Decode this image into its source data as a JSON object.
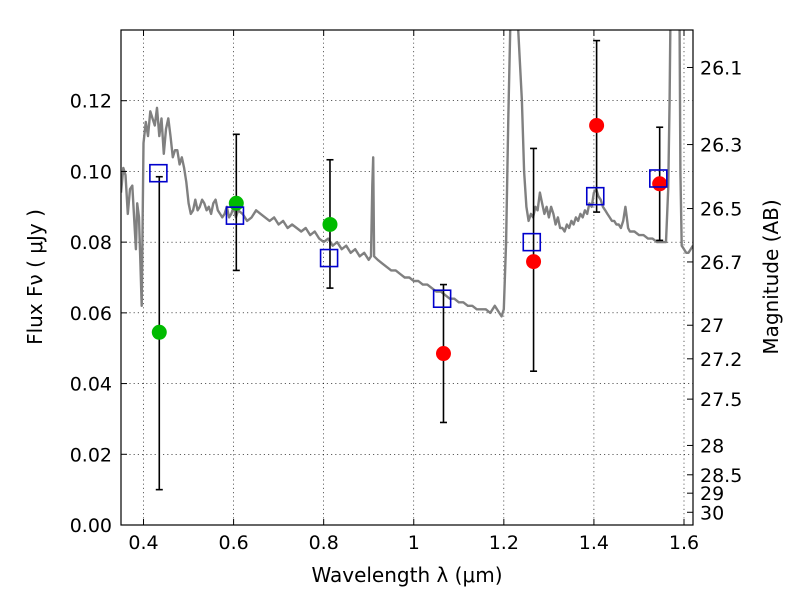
{
  "chart_data": {
    "type": "scatter",
    "xlabel": "Wavelength  λ (μm)",
    "ylabel": "Flux  Fν  ( μJy )",
    "y2label": "Magnitude (AB)",
    "xlim": [
      0.35,
      1.62
    ],
    "ylim": [
      0.0,
      0.14
    ],
    "grid": true,
    "x_ticks": [
      0.4,
      0.6,
      0.8,
      1.0,
      1.2,
      1.4,
      1.6
    ],
    "x_tick_labels": [
      "0.4",
      "0.6",
      "0.8",
      "1",
      "1.2",
      "1.4",
      "1.6"
    ],
    "y_ticks": [
      0.0,
      0.02,
      0.04,
      0.06,
      0.08,
      0.1,
      0.12
    ],
    "y_tick_labels": [
      "0.00",
      "0.02",
      "0.04",
      "0.06",
      "0.08",
      "0.10",
      "0.12"
    ],
    "y2_ticks": [
      {
        "label": "26.1",
        "flux": 0.1294
      },
      {
        "label": "26.3",
        "flux": 0.1076
      },
      {
        "label": "26.5",
        "flux": 0.0895
      },
      {
        "label": "26.7",
        "flux": 0.0744
      },
      {
        "label": "27",
        "flux": 0.0565
      },
      {
        "label": "27.2",
        "flux": 0.047
      },
      {
        "label": "27.5",
        "flux": 0.0356
      },
      {
        "label": "28",
        "flux": 0.0225
      },
      {
        "label": "28.5",
        "flux": 0.0142
      },
      {
        "label": "29",
        "flux": 0.009
      },
      {
        "label": "30",
        "flux": 0.0036
      }
    ],
    "series": [
      {
        "marker": "circle",
        "color": "#00bb00",
        "points": [
          {
            "x": 0.435,
            "y": 0.0545,
            "err": [
              0.01,
              0.0985
            ]
          },
          {
            "x": 0.606,
            "y": 0.091,
            "err": [
              0.072,
              0.1105
            ]
          },
          {
            "x": 0.814,
            "y": 0.085,
            "err": [
              0.067,
              0.1033
            ]
          }
        ]
      },
      {
        "marker": "circle",
        "color": "#ff0000",
        "points": [
          {
            "x": 1.066,
            "y": 0.0485,
            "err": [
              0.029,
              0.068
            ]
          },
          {
            "x": 1.266,
            "y": 0.0745,
            "err": [
              0.0435,
              0.1065
            ]
          },
          {
            "x": 1.406,
            "y": 0.113,
            "err": [
              0.0885,
              0.137
            ]
          },
          {
            "x": 1.546,
            "y": 0.0965,
            "err": [
              0.0805,
              0.1125
            ]
          }
        ]
      },
      {
        "marker": "square",
        "color": "#0000cc",
        "points": [
          {
            "x": 0.433,
            "y": 0.0995
          },
          {
            "x": 0.603,
            "y": 0.0875
          },
          {
            "x": 0.812,
            "y": 0.0755
          },
          {
            "x": 1.063,
            "y": 0.064
          },
          {
            "x": 1.262,
            "y": 0.08
          },
          {
            "x": 1.403,
            "y": 0.093
          },
          {
            "x": 1.543,
            "y": 0.098
          }
        ]
      },
      {
        "type": "line",
        "color": "#808080",
        "points": [
          [
            0.35,
            0.094
          ],
          [
            0.355,
            0.101
          ],
          [
            0.36,
            0.099
          ],
          [
            0.365,
            0.088
          ],
          [
            0.37,
            0.095
          ],
          [
            0.375,
            0.096
          ],
          [
            0.38,
            0.085
          ],
          [
            0.383,
            0.078
          ],
          [
            0.386,
            0.091
          ],
          [
            0.39,
            0.087
          ],
          [
            0.393,
            0.074
          ],
          [
            0.396,
            0.062
          ],
          [
            0.4,
            0.108
          ],
          [
            0.405,
            0.114
          ],
          [
            0.41,
            0.11
          ],
          [
            0.415,
            0.117
          ],
          [
            0.42,
            0.115
          ],
          [
            0.425,
            0.113
          ],
          [
            0.43,
            0.118
          ],
          [
            0.435,
            0.11
          ],
          [
            0.44,
            0.115
          ],
          [
            0.445,
            0.105
          ],
          [
            0.45,
            0.112
          ],
          [
            0.455,
            0.115
          ],
          [
            0.46,
            0.11
          ],
          [
            0.465,
            0.104
          ],
          [
            0.47,
            0.106
          ],
          [
            0.475,
            0.106
          ],
          [
            0.48,
            0.102
          ],
          [
            0.485,
            0.104
          ],
          [
            0.49,
            0.101
          ],
          [
            0.495,
            0.097
          ],
          [
            0.5,
            0.091
          ],
          [
            0.505,
            0.088
          ],
          [
            0.51,
            0.089
          ],
          [
            0.515,
            0.092
          ],
          [
            0.52,
            0.089
          ],
          [
            0.525,
            0.09
          ],
          [
            0.53,
            0.092
          ],
          [
            0.535,
            0.091
          ],
          [
            0.54,
            0.089
          ],
          [
            0.545,
            0.09
          ],
          [
            0.55,
            0.088
          ],
          [
            0.555,
            0.091
          ],
          [
            0.56,
            0.092
          ],
          [
            0.565,
            0.089
          ],
          [
            0.57,
            0.088
          ],
          [
            0.575,
            0.087
          ],
          [
            0.58,
            0.088
          ],
          [
            0.585,
            0.09
          ],
          [
            0.59,
            0.087
          ],
          [
            0.595,
            0.088
          ],
          [
            0.6,
            0.09
          ],
          [
            0.605,
            0.087
          ],
          [
            0.61,
            0.089
          ],
          [
            0.62,
            0.088
          ],
          [
            0.63,
            0.086
          ],
          [
            0.64,
            0.087
          ],
          [
            0.65,
            0.089
          ],
          [
            0.66,
            0.088
          ],
          [
            0.67,
            0.087
          ],
          [
            0.68,
            0.086
          ],
          [
            0.69,
            0.087
          ],
          [
            0.7,
            0.085
          ],
          [
            0.71,
            0.086
          ],
          [
            0.72,
            0.084
          ],
          [
            0.73,
            0.085
          ],
          [
            0.74,
            0.084
          ],
          [
            0.75,
            0.083
          ],
          [
            0.76,
            0.084
          ],
          [
            0.77,
            0.082
          ],
          [
            0.78,
            0.083
          ],
          [
            0.79,
            0.081
          ],
          [
            0.8,
            0.08
          ],
          [
            0.81,
            0.081
          ],
          [
            0.82,
            0.079
          ],
          [
            0.83,
            0.08
          ],
          [
            0.84,
            0.078
          ],
          [
            0.85,
            0.079
          ],
          [
            0.86,
            0.077
          ],
          [
            0.87,
            0.078
          ],
          [
            0.88,
            0.076
          ],
          [
            0.89,
            0.077
          ],
          [
            0.9,
            0.075
          ],
          [
            0.905,
            0.076
          ],
          [
            0.908,
            0.096
          ],
          [
            0.91,
            0.104
          ],
          [
            0.912,
            0.076
          ],
          [
            0.92,
            0.075
          ],
          [
            0.93,
            0.074
          ],
          [
            0.94,
            0.073
          ],
          [
            0.95,
            0.072
          ],
          [
            0.96,
            0.072
          ],
          [
            0.97,
            0.071
          ],
          [
            0.98,
            0.07
          ],
          [
            0.99,
            0.07
          ],
          [
            1.0,
            0.069
          ],
          [
            1.01,
            0.069
          ],
          [
            1.02,
            0.068
          ],
          [
            1.03,
            0.068
          ],
          [
            1.04,
            0.067
          ],
          [
            1.05,
            0.066
          ],
          [
            1.06,
            0.066
          ],
          [
            1.07,
            0.065
          ],
          [
            1.08,
            0.064
          ],
          [
            1.09,
            0.064
          ],
          [
            1.1,
            0.063
          ],
          [
            1.11,
            0.063
          ],
          [
            1.12,
            0.062
          ],
          [
            1.13,
            0.062
          ],
          [
            1.14,
            0.061
          ],
          [
            1.15,
            0.061
          ],
          [
            1.16,
            0.061
          ],
          [
            1.17,
            0.06
          ],
          [
            1.18,
            0.062
          ],
          [
            1.19,
            0.06
          ],
          [
            1.195,
            0.059
          ],
          [
            1.2,
            0.061
          ],
          [
            1.205,
            0.08
          ],
          [
            1.21,
            0.115
          ],
          [
            1.215,
            0.145
          ],
          [
            1.23,
            0.145
          ],
          [
            1.24,
            0.12
          ],
          [
            1.245,
            0.1
          ],
          [
            1.25,
            0.09
          ],
          [
            1.255,
            0.086
          ],
          [
            1.26,
            0.088
          ],
          [
            1.265,
            0.087
          ],
          [
            1.27,
            0.09
          ],
          [
            1.275,
            0.089
          ],
          [
            1.28,
            0.094
          ],
          [
            1.285,
            0.091
          ],
          [
            1.29,
            0.088
          ],
          [
            1.295,
            0.09
          ],
          [
            1.3,
            0.087
          ],
          [
            1.305,
            0.09
          ],
          [
            1.31,
            0.088
          ],
          [
            1.315,
            0.085
          ],
          [
            1.32,
            0.087
          ],
          [
            1.325,
            0.084
          ],
          [
            1.33,
            0.084
          ],
          [
            1.335,
            0.083
          ],
          [
            1.34,
            0.085
          ],
          [
            1.345,
            0.084
          ],
          [
            1.35,
            0.086
          ],
          [
            1.355,
            0.085
          ],
          [
            1.36,
            0.087
          ],
          [
            1.365,
            0.086
          ],
          [
            1.37,
            0.088
          ],
          [
            1.375,
            0.087
          ],
          [
            1.38,
            0.089
          ],
          [
            1.385,
            0.088
          ],
          [
            1.39,
            0.091
          ],
          [
            1.395,
            0.09
          ],
          [
            1.4,
            0.094
          ],
          [
            1.405,
            0.095
          ],
          [
            1.41,
            0.093
          ],
          [
            1.415,
            0.092
          ],
          [
            1.42,
            0.09
          ],
          [
            1.425,
            0.089
          ],
          [
            1.43,
            0.088
          ],
          [
            1.435,
            0.087
          ],
          [
            1.44,
            0.086
          ],
          [
            1.445,
            0.086
          ],
          [
            1.45,
            0.085
          ],
          [
            1.455,
            0.085
          ],
          [
            1.46,
            0.084
          ],
          [
            1.465,
            0.086
          ],
          [
            1.47,
            0.09
          ],
          [
            1.473,
            0.087
          ],
          [
            1.476,
            0.084
          ],
          [
            1.48,
            0.083
          ],
          [
            1.49,
            0.083
          ],
          [
            1.5,
            0.082
          ],
          [
            1.51,
            0.082
          ],
          [
            1.52,
            0.081
          ],
          [
            1.53,
            0.081
          ],
          [
            1.54,
            0.08
          ],
          [
            1.55,
            0.08
          ],
          [
            1.56,
            0.08
          ],
          [
            1.565,
            0.095
          ],
          [
            1.568,
            0.12
          ],
          [
            1.57,
            0.145
          ],
          [
            1.59,
            0.145
          ],
          [
            1.592,
            0.1
          ],
          [
            1.595,
            0.079
          ],
          [
            1.6,
            0.078
          ],
          [
            1.605,
            0.077
          ],
          [
            1.61,
            0.077
          ],
          [
            1.615,
            0.078
          ],
          [
            1.62,
            0.079
          ]
        ]
      }
    ]
  }
}
